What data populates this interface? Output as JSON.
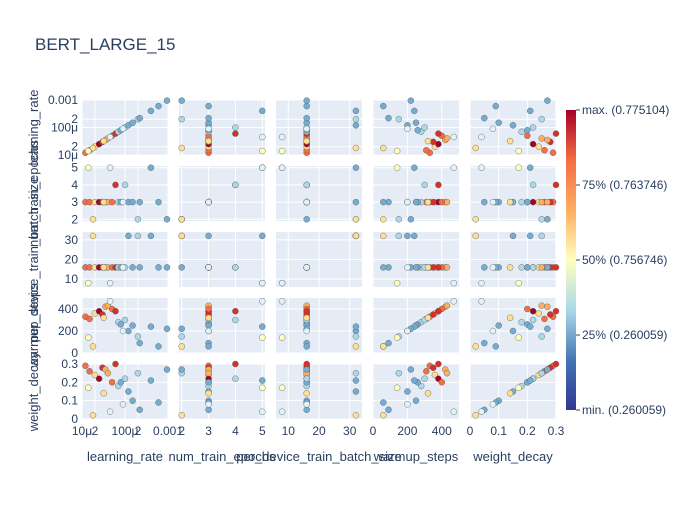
{
  "chart_data": {
    "type": "scatter",
    "title": "BERT_LARGE_15",
    "dimensions": [
      {
        "key": "learning_rate",
        "label": "learning_rate",
        "scale": "log",
        "range": [
          1e-05,
          0.001
        ],
        "ticks": [
          {
            "v": 1e-05,
            "t": "10μ"
          },
          {
            "v": 2e-05,
            "t": "2"
          },
          {
            "v": 0.0001,
            "t": "100μ"
          },
          {
            "v": 0.0002,
            "t": "2"
          },
          {
            "v": 0.001,
            "t": "0.001"
          }
        ]
      },
      {
        "key": "num_train_epochs",
        "label": "num_train_epochs",
        "scale": "linear",
        "range": [
          1.9,
          5.1
        ],
        "ticks": [
          {
            "v": 2,
            "t": "2"
          },
          {
            "v": 3,
            "t": "3"
          },
          {
            "v": 4,
            "t": "4"
          },
          {
            "v": 5,
            "t": "5"
          }
        ]
      },
      {
        "key": "per_device_train_batch_size",
        "label": "per_device_train_batch_size",
        "scale": "linear",
        "range": [
          6,
          34
        ],
        "ticks": [
          {
            "v": 10,
            "t": "10"
          },
          {
            "v": 20,
            "t": "20"
          },
          {
            "v": 30,
            "t": "30"
          }
        ]
      },
      {
        "key": "warmup_steps",
        "label": "warmup_steps",
        "scale": "linear",
        "range": [
          0,
          500
        ],
        "ticks": [
          {
            "v": 0,
            "t": "0"
          },
          {
            "v": 200,
            "t": "200"
          },
          {
            "v": 400,
            "t": "400"
          }
        ]
      },
      {
        "key": "weight_decay",
        "label": "weight_decay",
        "scale": "linear",
        "range": [
          0,
          0.3
        ],
        "ticks": [
          {
            "v": 0,
            "t": "0"
          },
          {
            "v": 0.1,
            "t": "0.1"
          },
          {
            "v": 0.2,
            "t": "0.2"
          },
          {
            "v": 0.3,
            "t": "0.3"
          }
        ]
      }
    ],
    "points": [
      {
        "learning_rate": 1.2e-05,
        "num_train_epochs": 3,
        "per_device_train_batch_size": 16,
        "warmup_steps": 330,
        "weight_decay": 0.29,
        "color": 0.77
      },
      {
        "learning_rate": 1.5e-05,
        "num_train_epochs": 3,
        "per_device_train_batch_size": 16,
        "warmup_steps": 310,
        "weight_decay": 0.26,
        "color": 0.76
      },
      {
        "learning_rate": 2e-05,
        "num_train_epochs": 3,
        "per_device_train_batch_size": 16,
        "warmup_steps": 360,
        "weight_decay": 0.24,
        "color": 0.64
      },
      {
        "learning_rate": 2.5e-05,
        "num_train_epochs": 3,
        "per_device_train_batch_size": 16,
        "warmup_steps": 380,
        "weight_decay": 0.22,
        "color": 0.98
      },
      {
        "learning_rate": 3e-05,
        "num_train_epochs": 3,
        "per_device_train_batch_size": 16,
        "warmup_steps": 350,
        "weight_decay": 0.28,
        "color": 0.9
      },
      {
        "learning_rate": 3.5e-05,
        "num_train_epochs": 3,
        "per_device_train_batch_size": 16,
        "warmup_steps": 420,
        "weight_decay": 0.27,
        "color": 0.72
      },
      {
        "learning_rate": 4e-05,
        "num_train_epochs": 3,
        "per_device_train_batch_size": 16,
        "warmup_steps": 430,
        "weight_decay": 0.25,
        "color": 0.66
      },
      {
        "learning_rate": 5e-05,
        "num_train_epochs": 3,
        "per_device_train_batch_size": 16,
        "warmup_steps": 400,
        "weight_decay": 0.2,
        "color": 0.83
      },
      {
        "learning_rate": 6e-05,
        "num_train_epochs": 4,
        "per_device_train_batch_size": 16,
        "warmup_steps": 380,
        "weight_decay": 0.3,
        "color": 0.92
      },
      {
        "learning_rate": 7e-05,
        "num_train_epochs": 3,
        "per_device_train_batch_size": 16,
        "warmup_steps": 280,
        "weight_decay": 0.18,
        "color": 0.25
      },
      {
        "learning_rate": 8e-05,
        "num_train_epochs": 3,
        "per_device_train_batch_size": 16,
        "warmup_steps": 260,
        "weight_decay": 0.2,
        "color": 0.22
      },
      {
        "learning_rate": 0.0001,
        "num_train_epochs": 4,
        "per_device_train_batch_size": 16,
        "warmup_steps": 300,
        "weight_decay": 0.22,
        "color": 0.26
      },
      {
        "learning_rate": 0.00012,
        "num_train_epochs": 3,
        "per_device_train_batch_size": 32,
        "warmup_steps": 200,
        "weight_decay": 0.15,
        "color": 0.2
      },
      {
        "learning_rate": 0.00015,
        "num_train_epochs": 3,
        "per_device_train_batch_size": 16,
        "warmup_steps": 250,
        "weight_decay": 0.1,
        "color": 0.18
      },
      {
        "learning_rate": 0.0002,
        "num_train_epochs": 2,
        "per_device_train_batch_size": 32,
        "warmup_steps": 150,
        "weight_decay": 0.25,
        "color": 0.3
      },
      {
        "learning_rate": 0.00022,
        "num_train_epochs": 3,
        "per_device_train_batch_size": 16,
        "warmup_steps": 90,
        "weight_decay": 0.05,
        "color": 0.24
      },
      {
        "learning_rate": 0.0004,
        "num_train_epochs": 5,
        "per_device_train_batch_size": 32,
        "warmup_steps": 240,
        "weight_decay": 0.21,
        "color": 0.22
      },
      {
        "learning_rate": 0.0006,
        "num_train_epochs": 3,
        "per_device_train_batch_size": 16,
        "warmup_steps": 60,
        "weight_decay": 0.09,
        "color": 0.18
      },
      {
        "learning_rate": 0.00095,
        "num_train_epochs": 2,
        "per_device_train_batch_size": 16,
        "warmup_steps": 220,
        "weight_decay": 0.27,
        "color": 0.21
      },
      {
        "learning_rate": 1.4e-05,
        "num_train_epochs": 5,
        "per_device_train_batch_size": 8,
        "warmup_steps": 140,
        "weight_decay": 0.17,
        "color": 0.45
      },
      {
        "learning_rate": 1.8e-05,
        "num_train_epochs": 2,
        "per_device_train_batch_size": 32,
        "warmup_steps": 60,
        "weight_decay": 0.02,
        "color": 0.55
      },
      {
        "learning_rate": 3.2e-05,
        "num_train_epochs": 3,
        "per_device_train_batch_size": 16,
        "warmup_steps": 320,
        "weight_decay": 0.14,
        "color": 0.6
      },
      {
        "learning_rate": 4.5e-05,
        "num_train_epochs": 5,
        "per_device_train_batch_size": 8,
        "warmup_steps": 470,
        "weight_decay": 0.04,
        "color": 0.42
      },
      {
        "learning_rate": 9e-05,
        "num_train_epochs": 3,
        "per_device_train_batch_size": 16,
        "warmup_steps": 200,
        "weight_decay": 0.08,
        "color": 0.35
      }
    ],
    "colorbar": {
      "labels": [
        "max. (0.775104)",
        "75% (0.763746)",
        "50% (0.756746)",
        "25% (0.260059)",
        "min. (0.260059)"
      ],
      "colors": [
        "#2a186c",
        "#4575b4",
        "#abd9e9",
        "#ffffbf",
        "#fdae61",
        "#f46d43",
        "#a50026"
      ]
    },
    "grid": true,
    "marker_color_scale": "RdYlBu"
  }
}
